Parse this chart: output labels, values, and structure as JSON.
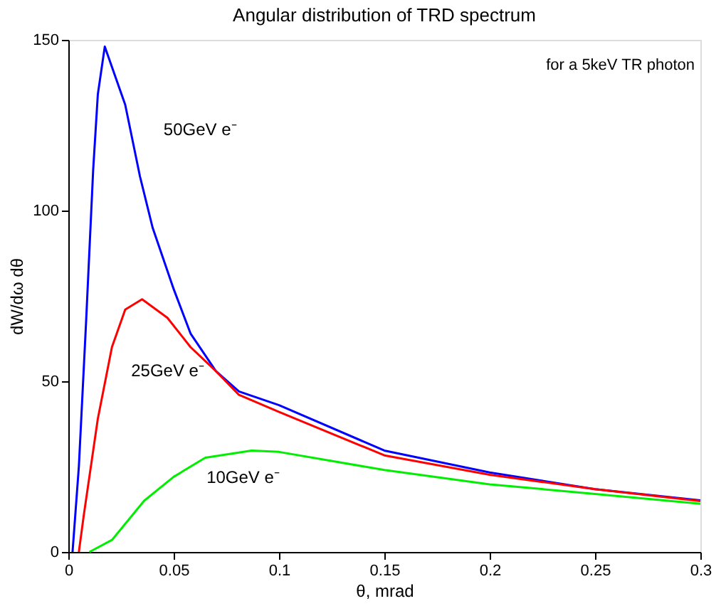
{
  "chart_data": {
    "type": "line",
    "title": "Angular distribution of TRD spectrum",
    "xlabel": "θ, mrad",
    "ylabel": "dW/dω dθ",
    "xlim": [
      0,
      0.3
    ],
    "ylim": [
      0,
      150
    ],
    "xticks": [
      0,
      0.05,
      0.1,
      0.15,
      0.2,
      0.25,
      0.3
    ],
    "yticks": [
      0,
      50,
      100,
      150
    ],
    "grid": false,
    "legend": false,
    "marker": "none",
    "line_style": "solid",
    "series": [
      {
        "name": "50GeV e⁻",
        "color": "#0000ff",
        "x": [
          0.002,
          0.005,
          0.0084,
          0.0118,
          0.014,
          0.0173,
          0.027,
          0.034,
          0.04,
          0.05,
          0.058,
          0.07,
          0.081,
          0.1,
          0.15,
          0.2,
          0.25,
          0.3
        ],
        "values": [
          0,
          25,
          67,
          112,
          134,
          148,
          131,
          110,
          95,
          77,
          64,
          53,
          47,
          43,
          29.7,
          23.3,
          18.4,
          15.1
        ]
      },
      {
        "name": "25GeV e⁻",
        "color": "#ff0000",
        "x": [
          0.005,
          0.0073,
          0.014,
          0.0207,
          0.027,
          0.035,
          0.047,
          0.058,
          0.07,
          0.081,
          0.1,
          0.15,
          0.2,
          0.25,
          0.3
        ],
        "values": [
          0,
          10.6,
          39,
          60,
          71,
          74,
          68.6,
          60,
          53,
          46,
          41,
          28.3,
          22.6,
          18.4,
          14.9
        ]
      },
      {
        "name": "10GeV e⁻",
        "color": "#00ee00",
        "x": [
          0.01,
          0.0207,
          0.036,
          0.05,
          0.065,
          0.087,
          0.1,
          0.15,
          0.2,
          0.25,
          0.3
        ],
        "values": [
          0,
          3.5,
          15,
          22,
          27.6,
          29.7,
          29.3,
          24,
          19.8,
          17,
          14.1
        ]
      }
    ],
    "annotations": [
      "for a 5keV TR photon"
    ]
  }
}
